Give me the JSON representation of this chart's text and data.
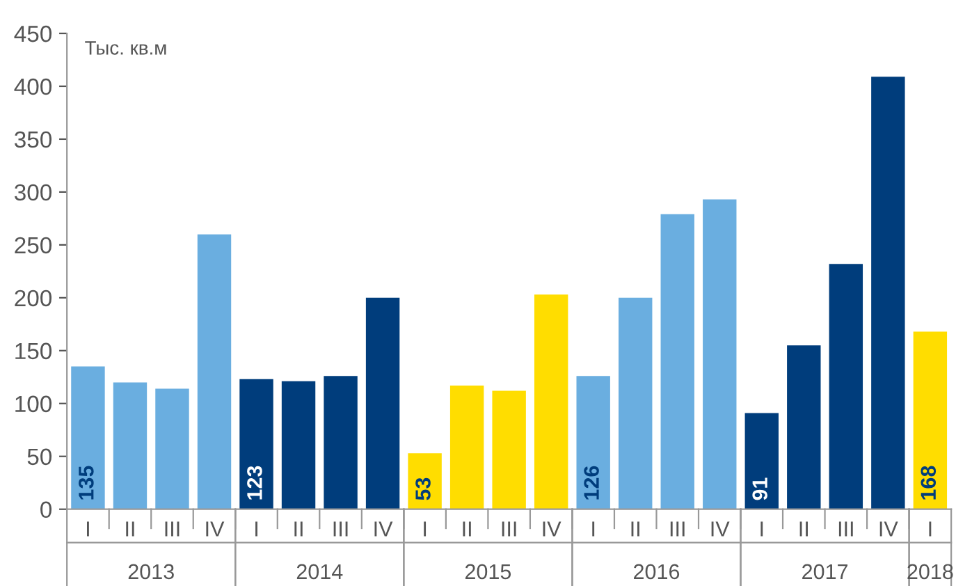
{
  "chart_data": {
    "type": "bar",
    "ylabel": "Тыс. кв.м",
    "categories": [
      "I",
      "II",
      "III",
      "IV",
      "I",
      "II",
      "III",
      "IV",
      "I",
      "II",
      "III",
      "IV",
      "I",
      "II",
      "III",
      "IV",
      "I",
      "II",
      "III",
      "IV",
      "I"
    ],
    "values": [
      135,
      120,
      114,
      260,
      123,
      121,
      126,
      200,
      53,
      117,
      112,
      203,
      126,
      200,
      279,
      293,
      91,
      155,
      232,
      409,
      168
    ],
    "value_labels": [
      "135",
      null,
      null,
      null,
      "123",
      null,
      null,
      null,
      "53",
      null,
      null,
      null,
      "126",
      null,
      null,
      null,
      "91",
      null,
      null,
      null,
      "168"
    ],
    "colors": [
      "#6aaee0",
      "#6aaee0",
      "#6aaee0",
      "#6aaee0",
      "#003d7c",
      "#003d7c",
      "#003d7c",
      "#003d7c",
      "#ffdd00",
      "#ffdd00",
      "#ffdd00",
      "#ffdd00",
      "#6aaee0",
      "#6aaee0",
      "#6aaee0",
      "#6aaee0",
      "#003d7c",
      "#003d7c",
      "#003d7c",
      "#003d7c",
      "#ffdd00"
    ],
    "annotations": [
      "2013",
      "2014",
      "2015",
      "2016",
      "2017",
      "2018"
    ],
    "ylim": [
      0,
      450
    ],
    "yticks": [
      0,
      50,
      100,
      150,
      200,
      250,
      300,
      350,
      400,
      450
    ],
    "grid": false,
    "legend": false
  }
}
